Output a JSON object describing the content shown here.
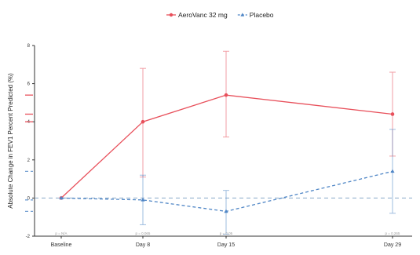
{
  "chart_data": {
    "type": "line",
    "categories": [
      "Baseline",
      "Day 8",
      "Day 15",
      "Day 29"
    ],
    "series": [
      {
        "name": "AeroVanc 32 mg",
        "color": "#e8505b",
        "line_style": "solid",
        "marker": "circle",
        "values": [
          0,
          4.0,
          5.4,
          4.4
        ],
        "error_upper": [
          0,
          6.8,
          7.7,
          6.6
        ],
        "error_lower": [
          0,
          1.1,
          3.2,
          2.2
        ]
      },
      {
        "name": "Placebo",
        "color": "#4f86c6",
        "line_style": "dashed",
        "marker": "triangle",
        "values": [
          0,
          -0.1,
          -0.7,
          1.4
        ],
        "error_upper": [
          0,
          1.2,
          0.4,
          3.6
        ],
        "error_lower": [
          0,
          -1.4,
          -1.9,
          -0.8
        ]
      }
    ],
    "ylabel": "Absolute Change in FEV1 Percent Predicted (%)",
    "xlabel": "",
    "ylim": [
      -2,
      8
    ],
    "yticks": [
      -2,
      0,
      2,
      4,
      6,
      8
    ],
    "reference_line": 0,
    "legend_position": "top-center",
    "grid": false,
    "p_values": [
      "p = N/A",
      "p = 0.065",
      "p = 0.05",
      "p = 0.265"
    ],
    "axis_color": "#333333",
    "ref_line_color": "#8aa9c9"
  }
}
